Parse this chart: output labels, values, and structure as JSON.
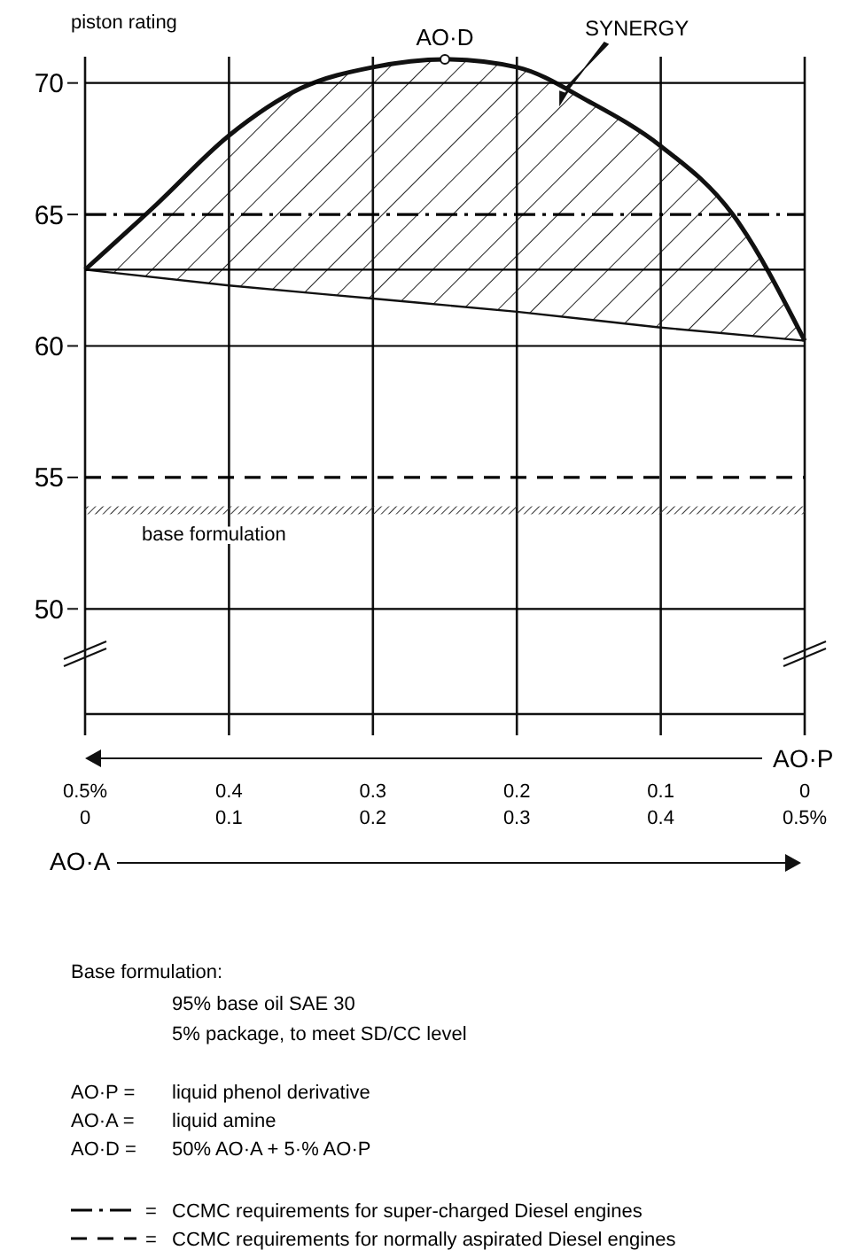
{
  "chart_data": {
    "type": "line",
    "ylabel": "piston rating",
    "xlabel": "AO·A",
    "x2label": "AO·P",
    "xlim": [
      0,
      0.5
    ],
    "xticks": [
      0,
      0.1,
      0.2,
      0.3,
      0.4,
      {
        "value": 0.5,
        "label": "0.5%"
      }
    ],
    "x2lim": [
      0.5,
      0
    ],
    "x2ticks": [
      {
        "value": 0.5,
        "label": "0.5%"
      },
      0.4,
      0.3,
      0.2,
      0.1,
      0
    ],
    "ylim": [
      46,
      71
    ],
    "yticks": [
      50,
      55,
      60,
      65,
      70
    ],
    "grid": "x",
    "legend": "bottom",
    "series": [
      {
        "color": "#111111",
        "x": [
          0,
          0.05,
          0.1,
          0.15,
          0.2,
          0.25,
          0.3,
          0.35,
          0.4,
          0.45,
          0.5
        ],
        "values": [
          62.9,
          65.4,
          68.0,
          69.8,
          70.6,
          70.9,
          70.6,
          69.3,
          67.6,
          65.0,
          60.2
        ]
      },
      {
        "color": "#111111",
        "x": [
          0,
          0.1,
          0.2,
          0.3,
          0.4,
          0.5
        ],
        "values": [
          62.9,
          62.3,
          61.8,
          61.3,
          60.7,
          60.2
        ]
      }
    ],
    "ref_lines": [
      {
        "axis": "y",
        "value": 65,
        "label": "CCMC requirements for super-charged Diesel engines",
        "line_style": "dotted"
      },
      {
        "axis": "y",
        "value": 55,
        "label": "CCMC requirements for normally aspirated Diesel engines",
        "line_style": "dashed"
      },
      {
        "axis": "y",
        "value": 62.9,
        "line_style": "solid"
      },
      {
        "axis": "y",
        "value": 50,
        "line_style": "solid"
      },
      {
        "axis": "y",
        "value": 60,
        "line_style": "solid"
      },
      {
        "axis": "y",
        "value": 70,
        "line_style": "solid"
      }
    ],
    "bands": [
      {
        "axis": "y",
        "from": 53.6,
        "to": 53.9,
        "label": "base formulation"
      }
    ],
    "annotations": [
      {
        "text": "AO·D",
        "x": 0.25,
        "y": 70.9
      },
      "SYNERGY",
      "Base formulation:",
      "95% base oil SAE 30",
      "5% package, to meet SD/CC level",
      "AO·P =",
      "liquid phenol derivative",
      "AO·A =",
      "liquid amine",
      "AO·D =",
      "50% AO·A + 5·% AO·P",
      "=",
      "="
    ]
  }
}
